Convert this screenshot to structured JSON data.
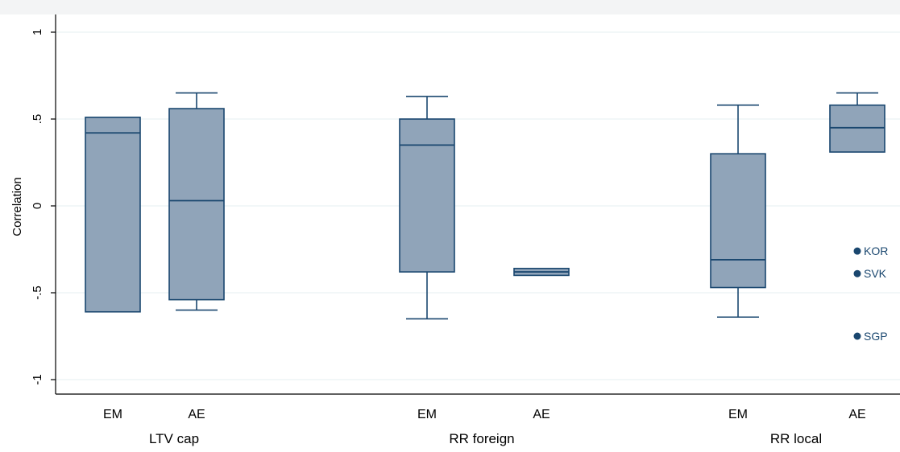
{
  "chart_data": {
    "type": "box",
    "ylabel": "Correlation",
    "ylim": [
      -1.1,
      1.1
    ],
    "yticks": [
      {
        "value": 1,
        "label": "1"
      },
      {
        "value": 0.5,
        "label": ".5"
      },
      {
        "value": 0,
        "label": "0"
      },
      {
        "value": -0.5,
        "label": "-.5"
      },
      {
        "value": -1,
        "label": "-1"
      }
    ],
    "grid": true,
    "groups": [
      {
        "label": "LTV cap",
        "boxes": [
          {
            "label": "EM",
            "whisker_low": -0.61,
            "q1": -0.61,
            "median": 0.42,
            "q3": 0.51,
            "whisker_high": 0.51,
            "outliers": []
          },
          {
            "label": "AE",
            "whisker_low": -0.6,
            "q1": -0.54,
            "median": 0.03,
            "q3": 0.56,
            "whisker_high": 0.65,
            "outliers": []
          }
        ]
      },
      {
        "label": "RR foreign",
        "boxes": [
          {
            "label": "EM",
            "whisker_low": -0.65,
            "q1": -0.38,
            "median": 0.35,
            "q3": 0.5,
            "whisker_high": 0.63,
            "outliers": []
          },
          {
            "label": "AE",
            "whisker_low": -0.4,
            "q1": -0.4,
            "median": -0.38,
            "q3": -0.36,
            "whisker_high": -0.36,
            "outliers": []
          }
        ]
      },
      {
        "label": "RR local",
        "boxes": [
          {
            "label": "EM",
            "whisker_low": -0.64,
            "q1": -0.47,
            "median": -0.31,
            "q3": 0.3,
            "whisker_high": 0.58,
            "outliers": []
          },
          {
            "label": "AE",
            "whisker_low": 0.31,
            "q1": 0.31,
            "median": 0.45,
            "q3": 0.58,
            "whisker_high": 0.65,
            "outliers": [
              {
                "label": "KOR",
                "value": -0.26
              },
              {
                "label": "SVK",
                "value": -0.39
              },
              {
                "label": "SGP",
                "value": -0.75
              }
            ]
          }
        ]
      }
    ],
    "colors": {
      "box_fill": "#90a4b9",
      "box_stroke": "#1a476f",
      "outlier": "#1a476f",
      "grid": "#eaf2f3",
      "axis": "#000000",
      "text": "#000000",
      "outlier_text": "#1a476f"
    }
  }
}
